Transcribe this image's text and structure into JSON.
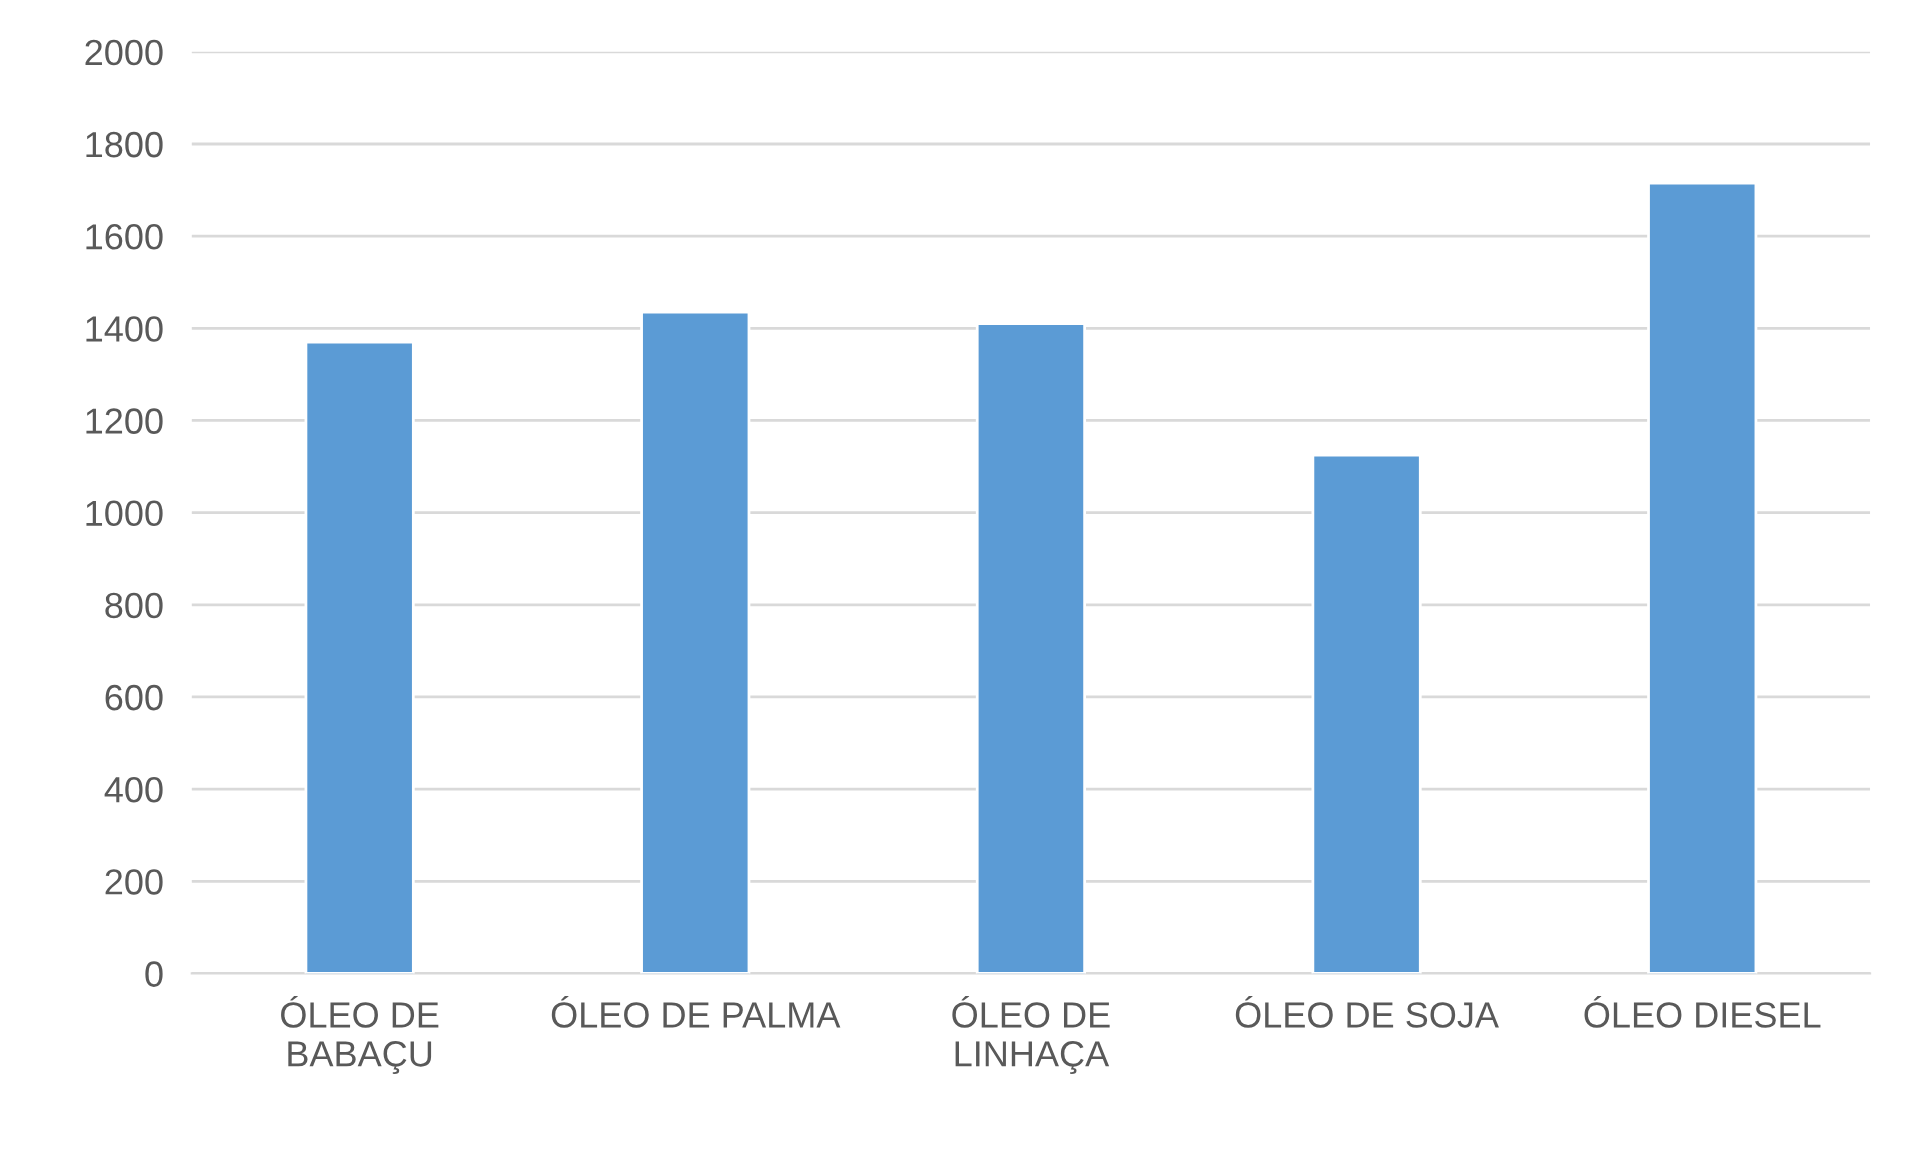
{
  "chart_data": {
    "type": "bar",
    "categories": [
      "ÓLEO DE\nBABAÇU",
      "ÓLEO DE PALMA",
      "ÓLEO DE\nLINHAÇA",
      "ÓLEO DE SOJA",
      "ÓLEO DIESEL"
    ],
    "values": [
      1370,
      1435,
      1410,
      1125,
      1715
    ],
    "color": "#5b9bd5",
    "ylim": [
      0,
      2000
    ],
    "yticks": [
      0,
      200,
      400,
      600,
      800,
      1000,
      1200,
      1400,
      1600,
      1800,
      2000
    ],
    "grid": "y"
  }
}
